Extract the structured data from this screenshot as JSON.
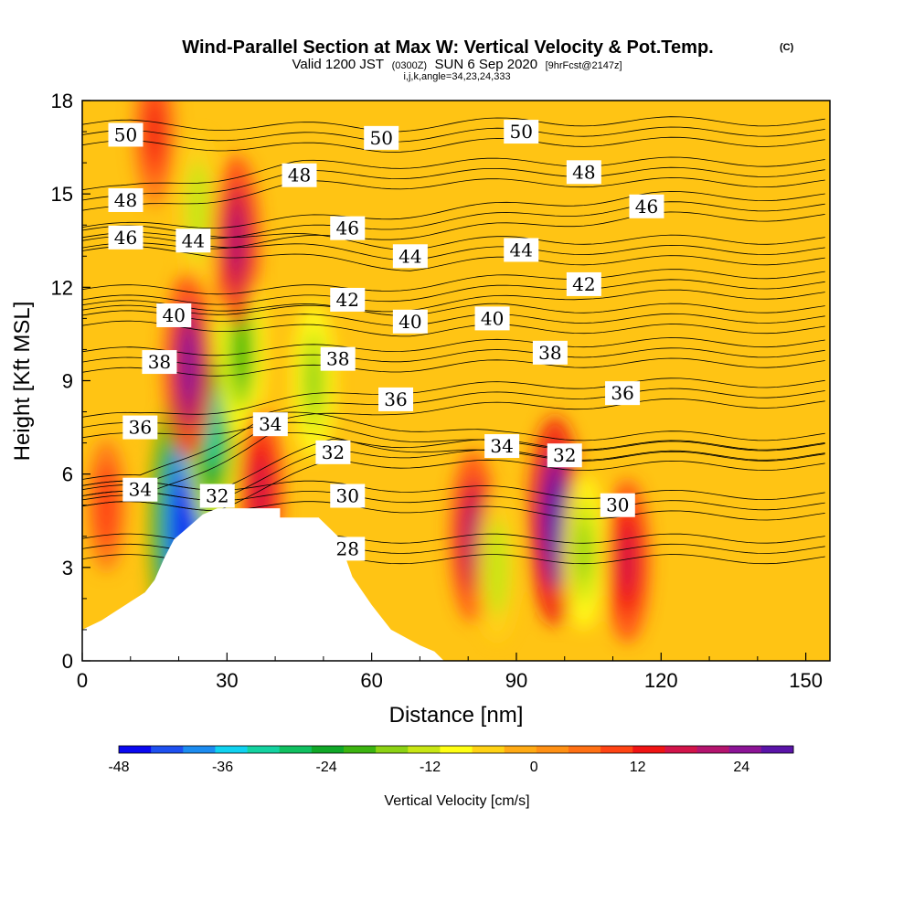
{
  "chart_data": {
    "type": "heatmap",
    "title": "Wind-Parallel Section at Max W: Vertical Velocity & Pot.Temp.",
    "title_mark": "(C)",
    "subtitle_a": "Valid 1200 JST",
    "subtitle_b": "(0300Z)",
    "subtitle_c": "SUN 6 Sep 2020",
    "subtitle_d": "[9hrFcst@2147z]",
    "subtitle2": "i,j,k,angle=34,23,24,333",
    "xlabel": "Distance [nm]",
    "ylabel": "Height [Kft MSL]",
    "xlim": [
      0,
      155
    ],
    "ylim": [
      0,
      18
    ],
    "xticks": [
      "0",
      "30",
      "60",
      "90",
      "120",
      "150"
    ],
    "yticks": [
      "0",
      "3",
      "6",
      "9",
      "12",
      "15",
      "18"
    ],
    "colorbar": {
      "label": "Vertical Velocity [cm/s]",
      "ticks": [
        "-48",
        "-36",
        "-24",
        "-12",
        "0",
        "12",
        "24"
      ],
      "range": [
        -48,
        30
      ],
      "colors": [
        "#0a08f0",
        "#1e50f0",
        "#1c8cf0",
        "#10d2f0",
        "#14d2a0",
        "#10c060",
        "#10a828",
        "#3cb410",
        "#8cd214",
        "#c8e614",
        "#ffff14",
        "#ffd214",
        "#ffaa14",
        "#ff9014",
        "#ff7014",
        "#ff4414",
        "#f01414",
        "#d2144a",
        "#b4146e",
        "#8c1496",
        "#5a14a8"
      ]
    },
    "series": [
      {
        "name": "Vertical Velocity [cm/s]",
        "kind": "filled",
        "cores": [
          {
            "x": 21,
            "z": 4.3,
            "w": -48
          },
          {
            "x": 27,
            "z": 7.5,
            "w": -30
          },
          {
            "x": 33,
            "z": 10.0,
            "w": -22
          },
          {
            "x": 24,
            "z": 14.5,
            "w": -14
          },
          {
            "x": 22,
            "z": 9.5,
            "w": 24
          },
          {
            "x": 32,
            "z": 13.5,
            "w": 20
          },
          {
            "x": 37,
            "z": 5.5,
            "w": 18
          },
          {
            "x": 48,
            "z": 9.0,
            "w": -16
          },
          {
            "x": 81,
            "z": 4.0,
            "w": 20
          },
          {
            "x": 86,
            "z": 3.0,
            "w": -14
          },
          {
            "x": 98,
            "z": 4.5,
            "w": 30
          },
          {
            "x": 104,
            "z": 3.5,
            "w": -16
          },
          {
            "x": 113,
            "z": 3.2,
            "w": 18
          },
          {
            "x": 15,
            "z": 17.0,
            "w": 14
          },
          {
            "x": 5,
            "z": 5.0,
            "w": 10
          }
        ]
      },
      {
        "name": "Pot.Temp. (C)",
        "kind": "contour",
        "labels": [
          {
            "text": "50",
            "x": 9,
            "z": 16.9
          },
          {
            "text": "50",
            "x": 62,
            "z": 16.8
          },
          {
            "text": "50",
            "x": 91,
            "z": 17.0
          },
          {
            "text": "48",
            "x": 9,
            "z": 14.8
          },
          {
            "text": "48",
            "x": 45,
            "z": 15.6
          },
          {
            "text": "48",
            "x": 104,
            "z": 15.7
          },
          {
            "text": "46",
            "x": 9,
            "z": 13.6
          },
          {
            "text": "46",
            "x": 55,
            "z": 13.9
          },
          {
            "text": "46",
            "x": 117,
            "z": 14.6
          },
          {
            "text": "44",
            "x": 23,
            "z": 13.5
          },
          {
            "text": "44",
            "x": 68,
            "z": 13.0
          },
          {
            "text": "44",
            "x": 91,
            "z": 13.2
          },
          {
            "text": "42",
            "x": 55,
            "z": 11.6
          },
          {
            "text": "42",
            "x": 104,
            "z": 12.1
          },
          {
            "text": "40",
            "x": 19,
            "z": 11.1
          },
          {
            "text": "40",
            "x": 68,
            "z": 10.9
          },
          {
            "text": "40",
            "x": 85,
            "z": 11.0
          },
          {
            "text": "38",
            "x": 16,
            "z": 9.6
          },
          {
            "text": "38",
            "x": 53,
            "z": 9.7
          },
          {
            "text": "38",
            "x": 97,
            "z": 9.9
          },
          {
            "text": "36",
            "x": 12,
            "z": 7.5
          },
          {
            "text": "36",
            "x": 65,
            "z": 8.4
          },
          {
            "text": "36",
            "x": 112,
            "z": 8.6
          },
          {
            "text": "34",
            "x": 12,
            "z": 5.5
          },
          {
            "text": "34",
            "x": 39,
            "z": 7.6
          },
          {
            "text": "34",
            "x": 87,
            "z": 6.9
          },
          {
            "text": "32",
            "x": 28,
            "z": 5.3
          },
          {
            "text": "32",
            "x": 52,
            "z": 6.7
          },
          {
            "text": "32",
            "x": 100,
            "z": 6.6
          },
          {
            "text": "30",
            "x": 55,
            "z": 5.3
          },
          {
            "text": "30",
            "x": 111,
            "z": 5.0
          },
          {
            "text": "28",
            "x": 55,
            "z": 3.6
          }
        ]
      }
    ],
    "terrain": [
      [
        0,
        1
      ],
      [
        4,
        1.3
      ],
      [
        7,
        1.6
      ],
      [
        10,
        1.9
      ],
      [
        13,
        2.2
      ],
      [
        15,
        2.6
      ],
      [
        17,
        3.3
      ],
      [
        19,
        3.9
      ],
      [
        22,
        4.3
      ],
      [
        25,
        4.7
      ],
      [
        28,
        4.9
      ],
      [
        41,
        4.9
      ],
      [
        41,
        4.6
      ],
      [
        43,
        4.6
      ],
      [
        43,
        4.6
      ],
      [
        47,
        4.6
      ],
      [
        49,
        4.6
      ],
      [
        53,
        4.0
      ],
      [
        56,
        2.7
      ],
      [
        60,
        1.8
      ],
      [
        64,
        1.0
      ],
      [
        70,
        0.5
      ],
      [
        73,
        0.3
      ],
      [
        75,
        0
      ],
      [
        155,
        0
      ]
    ]
  }
}
